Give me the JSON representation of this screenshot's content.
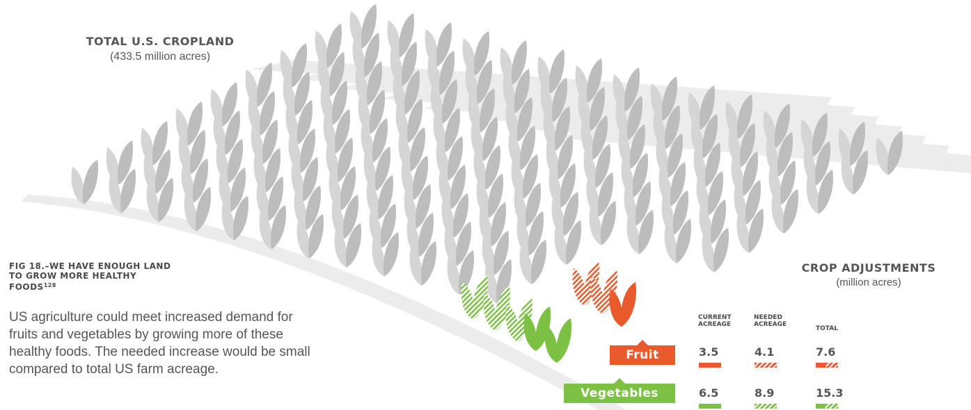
{
  "figure": {
    "cropland_title": "Total U.S. Cropland",
    "cropland_subtitle": "(433.5 million acres)",
    "fig_title": "Fig 18.–We have enough land to grow more healthy foods",
    "fig_ref": "128",
    "description": "US agriculture could meet increased demand for fruits and vegetables by growing more of these healthy foods. The needed increase would be small compared to total US farm acreage."
  },
  "chart_data": {
    "type": "table",
    "title": "Crop Adjustments",
    "subtitle": "(million acres)",
    "columns": [
      "Current Acreage",
      "Needed Acreage",
      "Total"
    ],
    "rows": [
      {
        "name": "Fruit",
        "color": "#e95a2c",
        "values": [
          3.5,
          4.1,
          7.6
        ]
      },
      {
        "name": "Vegetables",
        "color": "#7cc044",
        "values": [
          6.5,
          8.9,
          15.3
        ]
      }
    ]
  },
  "colors": {
    "fruit": "#e95a2c",
    "vegetables": "#7cc044",
    "cropland_leaf": "#d5d5d5",
    "cropland_leaf_dark": "#bdbdbd",
    "field_stripe": "#ececec"
  },
  "icons": {
    "crop": "leaf-sprout-icon"
  }
}
